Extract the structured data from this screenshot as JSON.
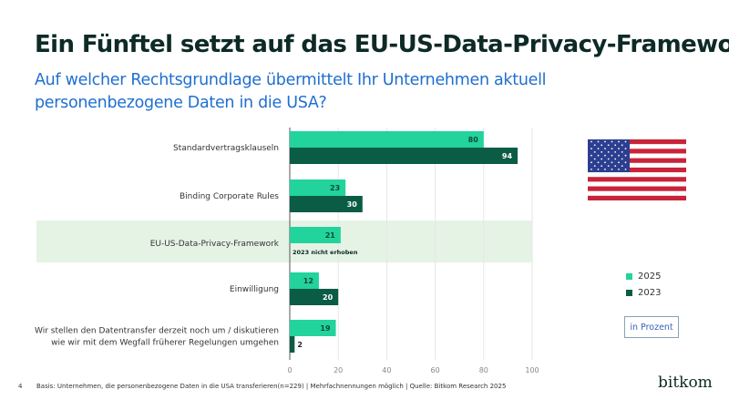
{
  "title": "Ein Fünftel setzt auf das EU-US-Data-Privacy-Framework",
  "subtitle": "Auf welcher Rechtsgrundlage übermittelt Ihr Unternehmen aktuell personenbezogene Daten in die USA?",
  "footer": "Basis: Unternehmen, die personenbezogene Daten in die USA transferieren(n=229) | Mehrfachnennungen möglich | Quelle: Bitkom Research 2025",
  "page_number": "4",
  "logo": "bitkom",
  "unit_label": "in Prozent",
  "flag_icon": "usa-flag-icon",
  "chart_data": {
    "type": "bar",
    "orientation": "horizontal",
    "categories": [
      "Standardvertragsklauseln",
      "Binding Corporate Rules",
      "EU-US-Data-Privacy-Framework",
      "Einwilligung",
      "Wir stellen den Datentransfer derzeit noch um / diskutieren wie wir mit dem Wegfall früherer Regelungen umgehen"
    ],
    "series": [
      {
        "name": "2025",
        "color": "#22d39c",
        "values": [
          80,
          23,
          21,
          12,
          19
        ]
      },
      {
        "name": "2023",
        "color": "#0b5c44",
        "values": [
          94,
          30,
          null,
          20,
          2
        ]
      }
    ],
    "annotations": [
      {
        "category": "EU-US-Data-Privacy-Framework",
        "text": "2023 nicht erhoben"
      }
    ],
    "highlight_category": "EU-US-Data-Privacy-Framework",
    "highlight_color": "#e5f3e5",
    "xlim": [
      0,
      100
    ],
    "xticks": [
      0,
      20,
      40,
      60,
      80,
      100
    ],
    "grid": true,
    "legend": "right"
  }
}
